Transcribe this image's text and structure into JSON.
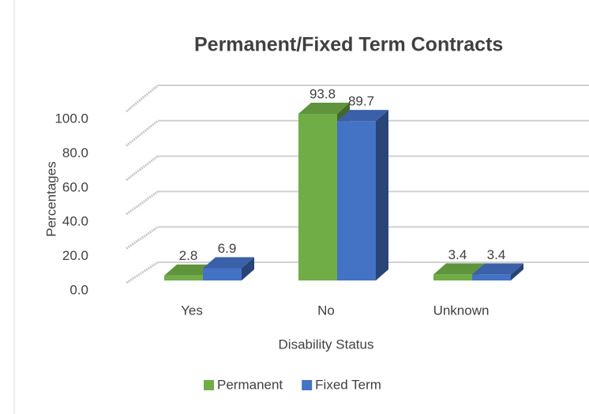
{
  "chart_data": {
    "type": "bar3d",
    "title": "Permanent/Fixed Term Contracts",
    "x_label": "Disability Status",
    "y_label": "Percentages",
    "categories": [
      "Yes",
      "No",
      "Unknown"
    ],
    "series": [
      {
        "name": "Permanent",
        "color": "#70ad47",
        "values": [
          2.8,
          93.8,
          3.4
        ]
      },
      {
        "name": "Fixed Term",
        "color": "#4472c4",
        "values": [
          6.9,
          89.7,
          3.4
        ]
      }
    ],
    "ylim": [
      0,
      100
    ],
    "yticks": [
      {
        "value": 0,
        "label": "0.0"
      },
      {
        "value": 20,
        "label": "20.0"
      },
      {
        "value": 40,
        "label": "40.0"
      },
      {
        "value": 60,
        "label": "60.0"
      },
      {
        "value": 80,
        "label": "80.0"
      },
      {
        "value": 100,
        "label": "100.0"
      }
    ],
    "grid": true,
    "legend": "bottom"
  }
}
